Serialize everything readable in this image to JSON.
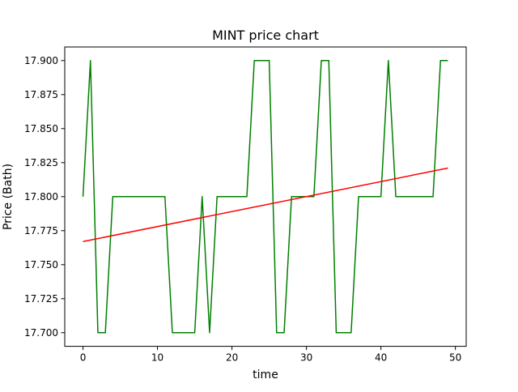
{
  "chart_data": {
    "type": "line",
    "title": "MINT price chart",
    "xlabel": "time",
    "ylabel": "Price (Bath)",
    "xlim": [
      -2.45,
      51.45
    ],
    "ylim": [
      17.69,
      17.91
    ],
    "x_ticks": [
      0,
      10,
      20,
      30,
      40,
      50
    ],
    "y_ticks": [
      17.7,
      17.725,
      17.75,
      17.775,
      17.8,
      17.825,
      17.85,
      17.875,
      17.9
    ],
    "y_tick_decimals": 3,
    "grid": false,
    "legend": "none",
    "series": [
      {
        "color": "#008000",
        "x": [
          0,
          1,
          2,
          3,
          4,
          5,
          6,
          7,
          8,
          9,
          10,
          11,
          12,
          13,
          14,
          15,
          16,
          17,
          18,
          19,
          20,
          21,
          22,
          23,
          24,
          25,
          26,
          27,
          28,
          29,
          30,
          31,
          32,
          33,
          34,
          35,
          36,
          37,
          38,
          39,
          40,
          41,
          42,
          43,
          44,
          45,
          46,
          47,
          48,
          49
        ],
        "y": [
          17.8,
          17.9,
          17.7,
          17.7,
          17.8,
          17.8,
          17.8,
          17.8,
          17.8,
          17.8,
          17.8,
          17.8,
          17.7,
          17.7,
          17.7,
          17.7,
          17.8,
          17.7,
          17.8,
          17.8,
          17.8,
          17.8,
          17.8,
          17.9,
          17.9,
          17.9,
          17.7,
          17.7,
          17.8,
          17.8,
          17.8,
          17.8,
          17.9,
          17.9,
          17.7,
          17.7,
          17.7,
          17.8,
          17.8,
          17.8,
          17.8,
          17.9,
          17.8,
          17.8,
          17.8,
          17.8,
          17.8,
          17.8,
          17.9,
          17.9
        ]
      },
      {
        "color": "#ff0000",
        "x": [
          0,
          49
        ],
        "y": [
          17.767,
          17.821
        ]
      }
    ]
  }
}
